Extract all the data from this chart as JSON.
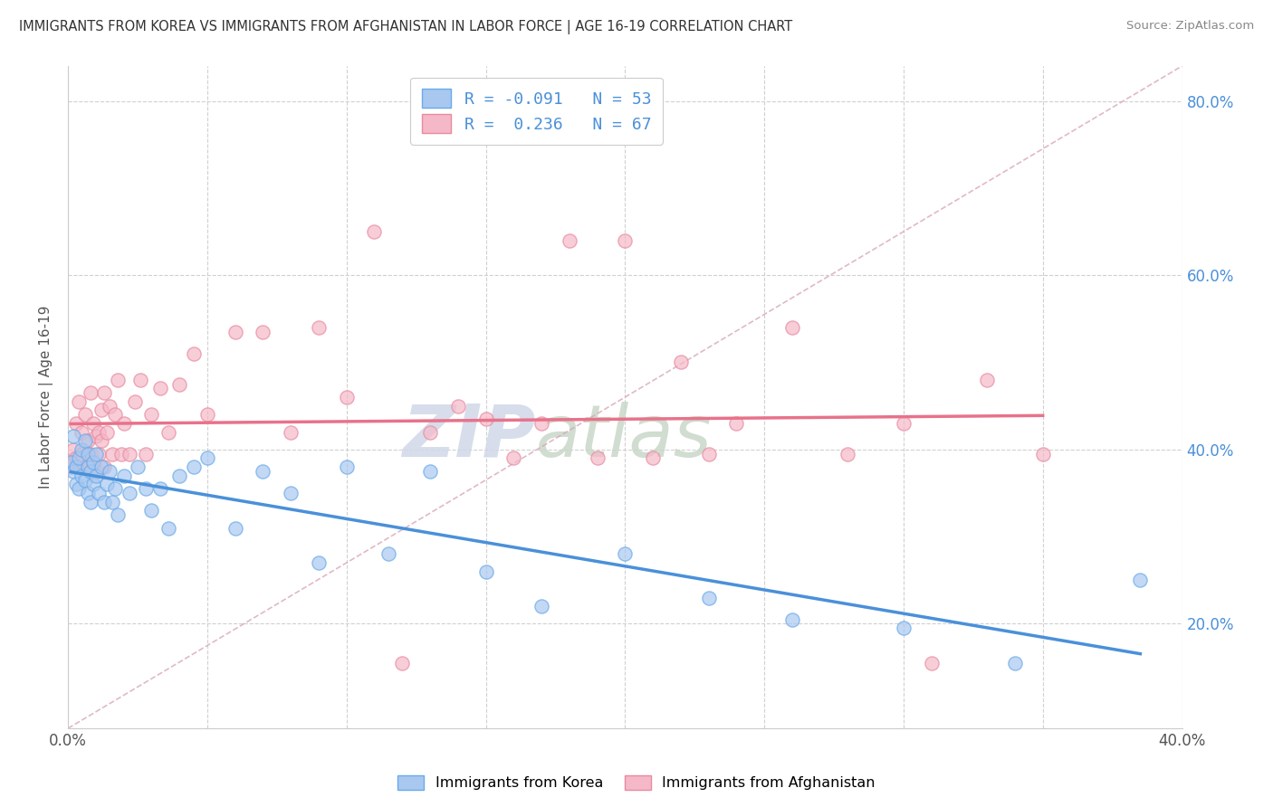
{
  "title": "IMMIGRANTS FROM KOREA VS IMMIGRANTS FROM AFGHANISTAN IN LABOR FORCE | AGE 16-19 CORRELATION CHART",
  "source": "Source: ZipAtlas.com",
  "ylabel": "In Labor Force | Age 16-19",
  "watermark_zip": "ZIP",
  "watermark_atlas": "atlas",
  "x_min": 0.0,
  "x_max": 0.4,
  "y_min": 0.08,
  "y_max": 0.84,
  "y_ticks": [
    0.2,
    0.4,
    0.6,
    0.8
  ],
  "y_tick_labels": [
    "20.0%",
    "40.0%",
    "60.0%",
    "80.0%"
  ],
  "korea_color": "#a8c8f0",
  "korea_edge_color": "#6aaae8",
  "afghanistan_color": "#f5b8c8",
  "afghanistan_edge_color": "#e88aa0",
  "korea_line_color": "#4a90d9",
  "afghanistan_line_color": "#e8728a",
  "ref_line_color": "#d8a8b8",
  "korea_R": -0.091,
  "korea_N": 53,
  "afghanistan_R": 0.236,
  "afghanistan_N": 67,
  "korea_scatter_x": [
    0.001,
    0.002,
    0.002,
    0.003,
    0.003,
    0.004,
    0.004,
    0.005,
    0.005,
    0.006,
    0.006,
    0.007,
    0.007,
    0.007,
    0.008,
    0.008,
    0.009,
    0.009,
    0.01,
    0.01,
    0.011,
    0.012,
    0.013,
    0.014,
    0.015,
    0.016,
    0.017,
    0.018,
    0.02,
    0.022,
    0.025,
    0.028,
    0.03,
    0.033,
    0.036,
    0.04,
    0.045,
    0.05,
    0.06,
    0.07,
    0.08,
    0.09,
    0.1,
    0.115,
    0.13,
    0.15,
    0.17,
    0.2,
    0.23,
    0.26,
    0.3,
    0.34,
    0.385
  ],
  "korea_scatter_y": [
    0.385,
    0.375,
    0.415,
    0.38,
    0.36,
    0.39,
    0.355,
    0.4,
    0.37,
    0.41,
    0.365,
    0.38,
    0.395,
    0.35,
    0.375,
    0.34,
    0.385,
    0.36,
    0.395,
    0.37,
    0.35,
    0.38,
    0.34,
    0.36,
    0.375,
    0.34,
    0.355,
    0.325,
    0.37,
    0.35,
    0.38,
    0.355,
    0.33,
    0.355,
    0.31,
    0.37,
    0.38,
    0.39,
    0.31,
    0.375,
    0.35,
    0.27,
    0.38,
    0.28,
    0.375,
    0.26,
    0.22,
    0.28,
    0.23,
    0.205,
    0.195,
    0.155,
    0.25
  ],
  "afghanistan_scatter_x": [
    0.001,
    0.002,
    0.002,
    0.003,
    0.003,
    0.004,
    0.004,
    0.005,
    0.005,
    0.006,
    0.006,
    0.007,
    0.007,
    0.008,
    0.008,
    0.009,
    0.009,
    0.01,
    0.01,
    0.011,
    0.011,
    0.012,
    0.012,
    0.013,
    0.013,
    0.014,
    0.015,
    0.016,
    0.017,
    0.018,
    0.019,
    0.02,
    0.022,
    0.024,
    0.026,
    0.028,
    0.03,
    0.033,
    0.036,
    0.04,
    0.045,
    0.05,
    0.06,
    0.07,
    0.08,
    0.09,
    0.1,
    0.11,
    0.12,
    0.13,
    0.14,
    0.15,
    0.16,
    0.17,
    0.18,
    0.19,
    0.2,
    0.21,
    0.22,
    0.23,
    0.24,
    0.26,
    0.28,
    0.3,
    0.31,
    0.33,
    0.35
  ],
  "afghanistan_scatter_y": [
    0.38,
    0.4,
    0.385,
    0.43,
    0.39,
    0.455,
    0.38,
    0.395,
    0.42,
    0.44,
    0.38,
    0.41,
    0.38,
    0.465,
    0.395,
    0.43,
    0.385,
    0.415,
    0.375,
    0.42,
    0.395,
    0.445,
    0.41,
    0.465,
    0.38,
    0.42,
    0.45,
    0.395,
    0.44,
    0.48,
    0.395,
    0.43,
    0.395,
    0.455,
    0.48,
    0.395,
    0.44,
    0.47,
    0.42,
    0.475,
    0.51,
    0.44,
    0.535,
    0.535,
    0.42,
    0.54,
    0.46,
    0.65,
    0.155,
    0.42,
    0.45,
    0.435,
    0.39,
    0.43,
    0.64,
    0.39,
    0.64,
    0.39,
    0.5,
    0.395,
    0.43,
    0.54,
    0.395,
    0.43,
    0.155,
    0.48,
    0.395
  ]
}
